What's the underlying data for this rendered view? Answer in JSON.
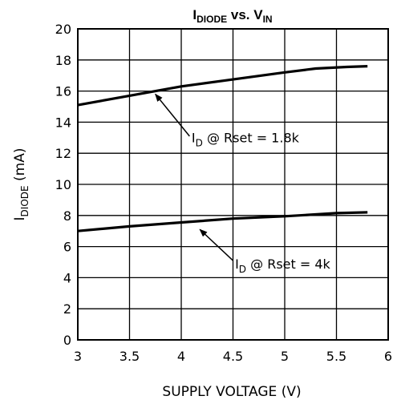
{
  "chart_data": {
    "type": "line",
    "title": {
      "main": "I",
      "sub": "DIODE",
      "mid": " vs. V",
      "sub2": "IN"
    },
    "xlabel": "SUPPLY VOLTAGE (V)",
    "ylabel": {
      "main": "I",
      "sub": "DIODE",
      "rest": " (mA)"
    },
    "xlim": [
      3,
      6
    ],
    "ylim": [
      0,
      20
    ],
    "x_ticks": [
      "3",
      "3.5",
      "4",
      "4.5",
      "5",
      "5.5",
      "6"
    ],
    "y_ticks": [
      "0",
      "2",
      "4",
      "6",
      "8",
      "10",
      "12",
      "14",
      "16",
      "18",
      "20"
    ],
    "grid": true,
    "series": [
      {
        "x": [
          3.0,
          3.5,
          4.0,
          4.5,
          5.0,
          5.3,
          5.6,
          5.8
        ],
        "y": [
          15.1,
          15.7,
          16.3,
          16.75,
          17.2,
          17.45,
          17.55,
          17.6
        ]
      },
      {
        "x": [
          3.0,
          3.5,
          4.0,
          4.5,
          5.0,
          5.5,
          5.8
        ],
        "y": [
          7.0,
          7.3,
          7.55,
          7.8,
          7.95,
          8.15,
          8.2
        ]
      }
    ],
    "annotations": [
      {
        "main": "I",
        "sub": "D",
        "rest": " @ Rset = 1.8k",
        "text_at": [
          4.1,
          12.7
        ],
        "arrow_from": [
          4.08,
          13.1
        ],
        "arrow_to": [
          3.75,
          15.8
        ]
      },
      {
        "main": "I",
        "sub": "D",
        "rest": " @ Rset = 4k",
        "text_at": [
          4.52,
          4.6
        ],
        "arrow_from": [
          4.5,
          5.1
        ],
        "arrow_to": [
          4.18,
          7.1
        ]
      }
    ]
  }
}
